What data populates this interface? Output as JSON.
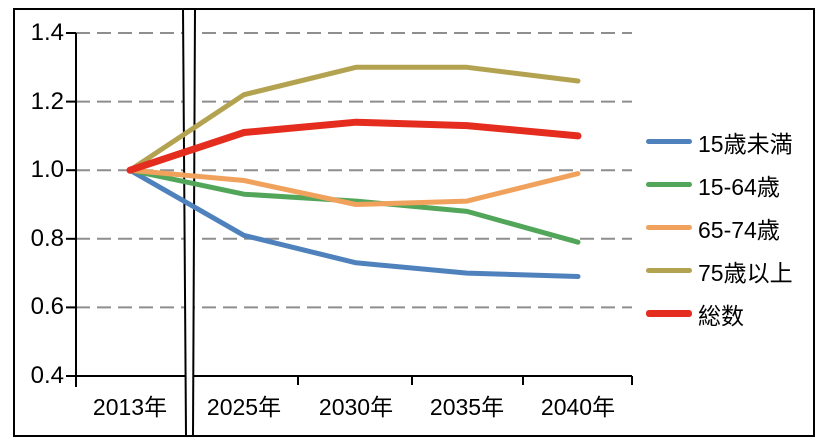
{
  "chart_data": {
    "type": "line",
    "categories": [
      "2013年",
      "2025年",
      "2030年",
      "2035年",
      "2040年"
    ],
    "series": [
      {
        "name": "15歳未満",
        "color": "#4F81BD",
        "linewidth": 5,
        "values": [
          1.0,
          0.81,
          0.73,
          0.7,
          0.69
        ]
      },
      {
        "name": "15-64歳",
        "color": "#51A659",
        "linewidth": 5,
        "values": [
          1.0,
          0.93,
          0.91,
          0.88,
          0.79
        ]
      },
      {
        "name": "65-74歳",
        "color": "#F0A25D",
        "linewidth": 5,
        "values": [
          1.0,
          0.97,
          0.9,
          0.91,
          0.99
        ]
      },
      {
        "name": "75歳以上",
        "color": "#B3A351",
        "linewidth": 5,
        "values": [
          1.0,
          1.22,
          1.3,
          1.3,
          1.26
        ]
      },
      {
        "name": "総数",
        "color": "#E42D1F",
        "linewidth": 7,
        "values": [
          1.0,
          1.11,
          1.14,
          1.13,
          1.1
        ]
      }
    ],
    "title": "",
    "xlabel": "",
    "ylabel": "",
    "ylim": [
      0.4,
      1.4
    ],
    "y_ticks": [
      "1.4",
      "1.2",
      "1.0",
      "0.8",
      "0.6",
      "0.4"
    ],
    "grid": "horizontal-dashed",
    "legend_position": "right",
    "axis_break_between": [
      "2013年",
      "2025年"
    ]
  },
  "colors": {
    "background": "#FFFFFF",
    "border": "#000000",
    "axis": "#000000",
    "gridline": "#8E8E8E"
  }
}
